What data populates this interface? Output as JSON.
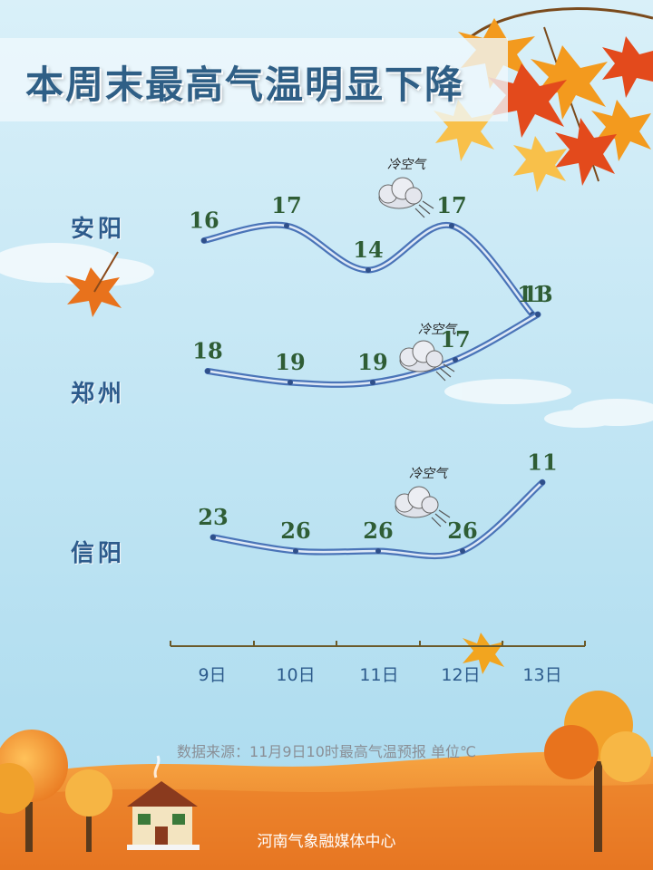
{
  "title": "本周末最高气温明显下降",
  "chart_data": {
    "type": "line",
    "x": [
      "9日",
      "10日",
      "11日",
      "12日",
      "13日"
    ],
    "series": [
      {
        "name": "安阳",
        "values": [
          16,
          17,
          14,
          17,
          11
        ]
      },
      {
        "name": "郑州",
        "values": [
          18,
          19,
          19,
          17,
          13
        ]
      },
      {
        "name": "信阳",
        "values": [
          23,
          26,
          26,
          26,
          11
        ]
      }
    ],
    "annotation": "冷空气",
    "ylabel": "",
    "xlabel": ""
  },
  "source": "数据来源：11月9日10时最高气温预报    单位℃",
  "org": "河南气象融媒体中心",
  "colors": {
    "sky_top": "#d7eef8",
    "sky_bottom": "#aedcef",
    "line": "#4a74b8",
    "value": "#2f5d35",
    "city": "#2d5b8c",
    "ground": "#ee8a2c"
  }
}
